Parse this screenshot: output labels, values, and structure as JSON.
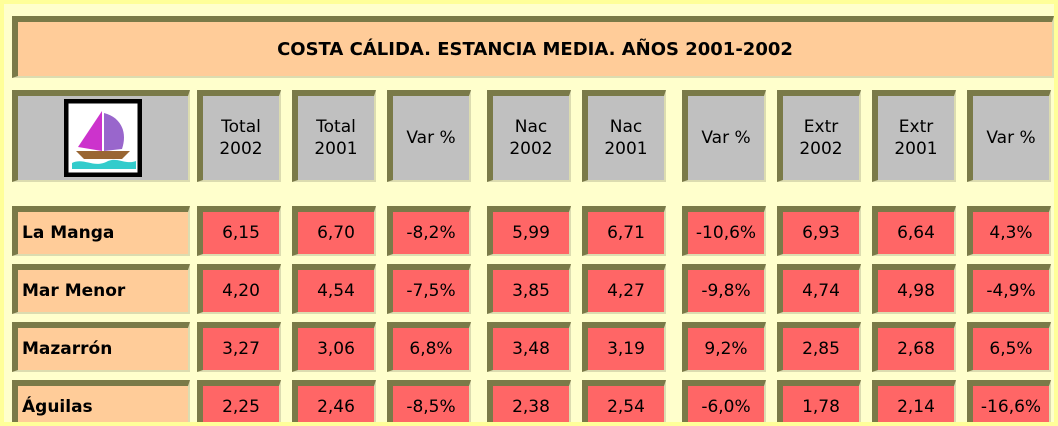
{
  "title": "COSTA CÁLIDA. ESTANCIA MEDIA. AÑOS 2001-2002",
  "table": {
    "headers": [
      [
        "Total",
        "2002"
      ],
      [
        "Total",
        "2001"
      ],
      [
        "Var %"
      ],
      [
        "Nac",
        "2002"
      ],
      [
        "Nac",
        "2001"
      ],
      [
        "Var %"
      ],
      [
        "Extr",
        "2002"
      ],
      [
        "Extr",
        "2001"
      ],
      [
        "Var %"
      ]
    ],
    "rows": [
      [
        "La Manga",
        "6,15",
        "6,70",
        "-8,2%",
        "5,99",
        "6,71",
        "-10,6%",
        "6,93",
        "6,64",
        "4,3%"
      ],
      [
        "Mar Menor",
        "4,20",
        "4,54",
        "-7,5%",
        "3,85",
        "4,27",
        "-9,8%",
        "4,74",
        "4,98",
        "-4,9%"
      ],
      [
        "Mazarrón",
        "3,27",
        "3,06",
        "6,8%",
        "3,48",
        "3,19",
        "9,2%",
        "2,85",
        "2,68",
        "6,5%"
      ],
      [
        "Águilas",
        "2,25",
        "2,46",
        "-8,5%",
        "2,38",
        "2,54",
        "-6,0%",
        "1,78",
        "2,14",
        "-16,6%"
      ]
    ]
  }
}
